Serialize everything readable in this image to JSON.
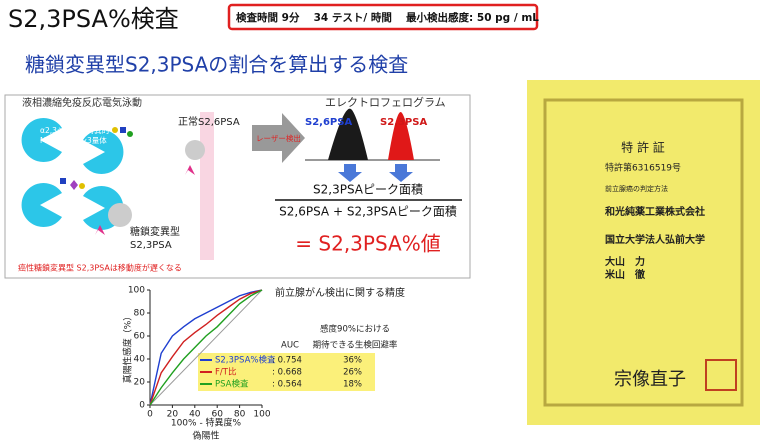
{
  "header": {
    "title": "S2,3PSA%検査",
    "spec": "検査時間 9分　 34 テスト/ 時間 　最小検出感度: 50 pg / mL"
  },
  "subtitle": "糖鎖変異型S2,3PSAの割合を算出する検査",
  "diagram": {
    "method": "液相濃縮免疫反応電気泳動",
    "lectin": [
      "α2,3シアル酸特異的",
      "MAAレクチン3量体"
    ],
    "normal": "正常S2,6PSA",
    "variant": [
      "糖鎖変異型",
      "S2,3PSA"
    ],
    "note": "癌性糖鎖変異型 S2,3PSAは移動度が遅くなる",
    "laser": "レーザー検出",
    "electropherogram": "エレクトロフェログラム",
    "peak_26": "S2,6PSA",
    "peak_23": "S2,3PSA",
    "numerator": "S2,3PSAピーク面積",
    "denominator": "S2,6PSA + S2,3PSAピーク面積",
    "result": "= S2,3PSA%値"
  },
  "chart_data": {
    "type": "line",
    "title": "前立腺がん検出に関する精度",
    "x_label": "100% - 特異度%",
    "x_label_2": "偽陽性",
    "y_label": "真陽性感度（%）",
    "auc_header": "AUC",
    "avoid_header": [
      "感度90%における",
      "期待できる生検回避率"
    ],
    "xlim": [
      0,
      100
    ],
    "ylim": [
      0,
      100
    ],
    "xticks": [
      0,
      20,
      40,
      60,
      80,
      100
    ],
    "yticks": [
      0,
      20,
      40,
      60,
      80,
      100
    ],
    "x": [
      0,
      10,
      20,
      30,
      40,
      50,
      60,
      70,
      80,
      90,
      100
    ],
    "series": [
      {
        "name": "S2,3PSA%検査",
        "color": "#1f3fd0",
        "auc": ": 0.754",
        "avoid": "36%",
        "values": [
          0,
          45,
          60,
          68,
          75,
          80,
          85,
          90,
          95,
          98,
          100
        ]
      },
      {
        "name": "F/T比",
        "color": "#d02020",
        "auc": ": 0.668",
        "avoid": "26%",
        "values": [
          0,
          28,
          42,
          55,
          63,
          70,
          78,
          85,
          92,
          97,
          100
        ]
      },
      {
        "name": "PSA検査",
        "color": "#20a020",
        "auc": ": 0.564",
        "avoid": "18%",
        "values": [
          0,
          15,
          28,
          40,
          50,
          60,
          68,
          78,
          88,
          95,
          100
        ]
      }
    ]
  },
  "certificate": {
    "heading": "特 許 証",
    "number": "特許第6316519号",
    "invention": "前立腺癌の判定方法",
    "holders": [
      "和光純薬工業株式会社",
      "国立大学法人弘前大学"
    ],
    "inventors": [
      "大山　力",
      "米山　徹"
    ],
    "signature": "宗像直子"
  }
}
